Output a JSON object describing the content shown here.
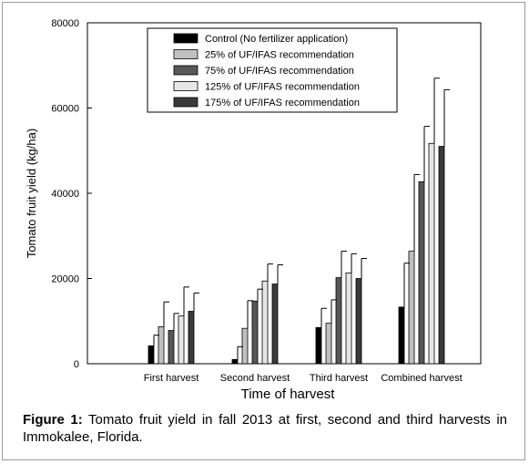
{
  "chart_data": {
    "type": "bar",
    "title": "",
    "xlabel": "Time of harvest",
    "ylabel": "Tomato fruit yield (kg/ha)",
    "ylim": [
      0,
      80000
    ],
    "yticks": [
      "0",
      "20000",
      "40000",
      "60000",
      "80000"
    ],
    "categories": [
      "First harvest",
      "Second harvest",
      "Third harvest",
      "Combined harvest"
    ],
    "legend_position": "top-center",
    "series": [
      {
        "name": "Control (No fertilizer application)",
        "color": "#000000",
        "values": [
          4200,
          1000,
          8500,
          13300
        ],
        "errors": [
          2500,
          3000,
          4500,
          10300
        ]
      },
      {
        "name": "25% of UF/IFAS recommendation",
        "color": "#c0c0c0",
        "values": [
          8700,
          8300,
          9500,
          26400
        ],
        "errors": [
          5800,
          6500,
          5500,
          18000
        ]
      },
      {
        "name": "75% of UF/IFAS recommendation",
        "color": "#585858",
        "values": [
          7800,
          14700,
          20200,
          42700
        ],
        "errors": [
          4000,
          2800,
          6200,
          13000
        ]
      },
      {
        "name": "125% of UF/IFAS recommendation",
        "color": "#e6e6e6",
        "values": [
          11200,
          19400,
          21300,
          51700
        ],
        "errors": [
          6800,
          4000,
          4500,
          15300
        ]
      },
      {
        "name": "175% of UF/IFAS recommendation",
        "color": "#3a3a3a",
        "values": [
          12300,
          18700,
          20000,
          51000
        ],
        "errors": [
          4300,
          4500,
          4700,
          13300
        ]
      }
    ]
  },
  "caption": {
    "label": "Figure 1:",
    "text": " Tomato fruit yield in fall 2013 at first, second and third harvests in Immokalee, Florida."
  }
}
